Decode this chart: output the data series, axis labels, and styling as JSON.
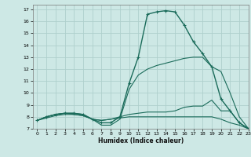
{
  "title": "",
  "xlabel": "Humidex (Indice chaleur)",
  "bg_color": "#cde8e5",
  "grid_color": "#aed0cc",
  "line_color": "#1a6b5a",
  "xlim": [
    -0.5,
    23
  ],
  "ylim": [
    7,
    17.4
  ],
  "yticks": [
    7,
    8,
    9,
    10,
    11,
    12,
    13,
    14,
    15,
    16,
    17
  ],
  "xticks": [
    0,
    1,
    2,
    3,
    4,
    5,
    6,
    7,
    8,
    9,
    10,
    11,
    12,
    13,
    14,
    15,
    16,
    17,
    18,
    19,
    20,
    21,
    22,
    23
  ],
  "curves": [
    {
      "x": [
        0,
        1,
        2,
        3,
        4,
        5,
        6,
        7,
        8,
        9,
        10,
        11,
        12,
        13,
        14,
        15,
        16,
        17,
        18,
        19,
        20,
        21,
        22,
        23
      ],
      "y": [
        7.7,
        8.0,
        8.2,
        8.3,
        8.3,
        8.2,
        7.8,
        7.5,
        7.5,
        8.0,
        10.8,
        13.0,
        16.6,
        16.8,
        16.9,
        16.8,
        15.7,
        14.3,
        13.3,
        12.2,
        9.5,
        8.5,
        7.5,
        7.0
      ],
      "marker": "+",
      "lw": 1.0
    },
    {
      "x": [
        0,
        1,
        2,
        3,
        4,
        5,
        6,
        7,
        8,
        9,
        10,
        11,
        12,
        13,
        14,
        15,
        16,
        17,
        18,
        19,
        20,
        21,
        22,
        23
      ],
      "y": [
        7.7,
        8.0,
        8.2,
        8.3,
        8.3,
        8.2,
        7.8,
        7.3,
        7.3,
        7.8,
        10.3,
        11.5,
        12.0,
        12.3,
        12.5,
        12.7,
        12.9,
        13.0,
        13.0,
        12.2,
        11.8,
        10.0,
        8.0,
        7.0
      ],
      "marker": null,
      "lw": 0.8
    },
    {
      "x": [
        0,
        1,
        2,
        3,
        4,
        5,
        6,
        7,
        8,
        9,
        10,
        11,
        12,
        13,
        14,
        15,
        16,
        17,
        18,
        19,
        20,
        21,
        22,
        23
      ],
      "y": [
        7.7,
        8.0,
        8.2,
        8.3,
        8.2,
        8.1,
        7.8,
        7.7,
        7.8,
        8.0,
        8.2,
        8.3,
        8.4,
        8.4,
        8.4,
        8.5,
        8.8,
        8.9,
        8.9,
        9.4,
        8.5,
        8.5,
        7.5,
        7.0
      ],
      "marker": null,
      "lw": 0.8
    },
    {
      "x": [
        0,
        1,
        2,
        3,
        4,
        5,
        6,
        7,
        8,
        9,
        10,
        11,
        12,
        13,
        14,
        15,
        16,
        17,
        18,
        19,
        20,
        21,
        22,
        23
      ],
      "y": [
        7.7,
        7.9,
        8.1,
        8.2,
        8.2,
        8.1,
        7.8,
        7.7,
        7.8,
        7.9,
        8.0,
        8.0,
        8.0,
        8.0,
        8.0,
        8.0,
        8.0,
        8.0,
        8.0,
        8.0,
        7.8,
        7.5,
        7.3,
        7.0
      ],
      "marker": null,
      "lw": 0.8
    }
  ]
}
